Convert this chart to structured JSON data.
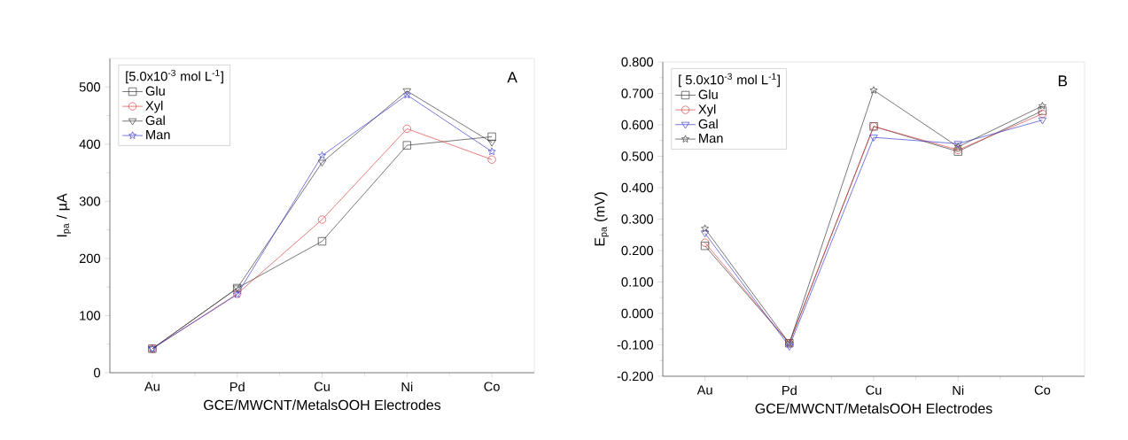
{
  "chart_data": [
    {
      "type": "line",
      "categories": [
        "Au",
        "Pd",
        "Cu",
        "Ni",
        "Co"
      ],
      "xlabel": "GCE/MWCNT/MetalsOOH Electrodes",
      "ylabel": "I$_{pa}$ / µA",
      "legend_title": "[5.0x10$^{-3}$ mol L$^{-1}$]",
      "annotations": [
        "A"
      ],
      "ylim": [
        0,
        550
      ],
      "yticks": [
        0,
        100,
        200,
        300,
        400,
        500
      ],
      "legend": "top left",
      "grid": false,
      "series": [
        {
          "name": "Glu",
          "color": "#333333",
          "marker": "square",
          "values": [
            42,
            148,
            230,
            398,
            413
          ]
        },
        {
          "name": "Xyl",
          "color": "#e03c3c",
          "marker": "circle",
          "values": [
            42,
            138,
            268,
            427,
            373
          ]
        },
        {
          "name": "Gal",
          "color": "#333333",
          "marker": "triangle",
          "values": [
            42,
            148,
            368,
            493,
            403
          ]
        },
        {
          "name": "Man",
          "color": "#3535d0",
          "marker": "star",
          "values": [
            42,
            137,
            380,
            486,
            387
          ]
        }
      ]
    },
    {
      "type": "line",
      "categories": [
        "Au",
        "Pd",
        "Cu",
        "Ni",
        "Co"
      ],
      "xlabel": "GCE/MWCNT/MetalsOOH Electrodes",
      "ylabel": "E$_{pa}$ (mV)",
      "legend_title": "[ 5.0x10$^{-3}$ mol L$^{-1}$]",
      "annotations": [
        "B"
      ],
      "ylim": [
        -0.2,
        0.8
      ],
      "legend": "top left",
      "grid": false,
      "yticks": [
        {
          "value": -0.2,
          "label": "-0.200"
        },
        {
          "value": -0.1,
          "label": "-0.100"
        },
        {
          "value": 0,
          "label": "0.000"
        },
        {
          "value": 0.1,
          "label": "0.100"
        },
        {
          "value": 0.2,
          "label": "0.200"
        },
        {
          "value": 0.3,
          "label": "0.300"
        },
        {
          "value": 0.4,
          "label": "0.400"
        },
        {
          "value": 0.5,
          "label": "0.500"
        },
        {
          "value": 0.6,
          "label": "0.600"
        },
        {
          "value": 0.7,
          "label": "0.700"
        },
        {
          "value": 0.8,
          "label": "0.800"
        }
      ],
      "series": [
        {
          "name": "Glu",
          "color": "#333333",
          "marker": "square",
          "values": [
            0.215,
            -0.095,
            0.595,
            0.515,
            0.645
          ]
        },
        {
          "name": "Xyl",
          "color": "#e03c3c",
          "marker": "circle",
          "values": [
            0.225,
            -0.095,
            0.595,
            0.52,
            0.635
          ]
        },
        {
          "name": "Gal",
          "color": "#3535d0",
          "marker": "triangle",
          "values": [
            0.255,
            -0.105,
            0.56,
            0.54,
            0.615
          ]
        },
        {
          "name": "Man",
          "color": "#333333",
          "marker": "star",
          "values": [
            0.27,
            -0.095,
            0.71,
            0.53,
            0.66
          ]
        }
      ]
    }
  ]
}
